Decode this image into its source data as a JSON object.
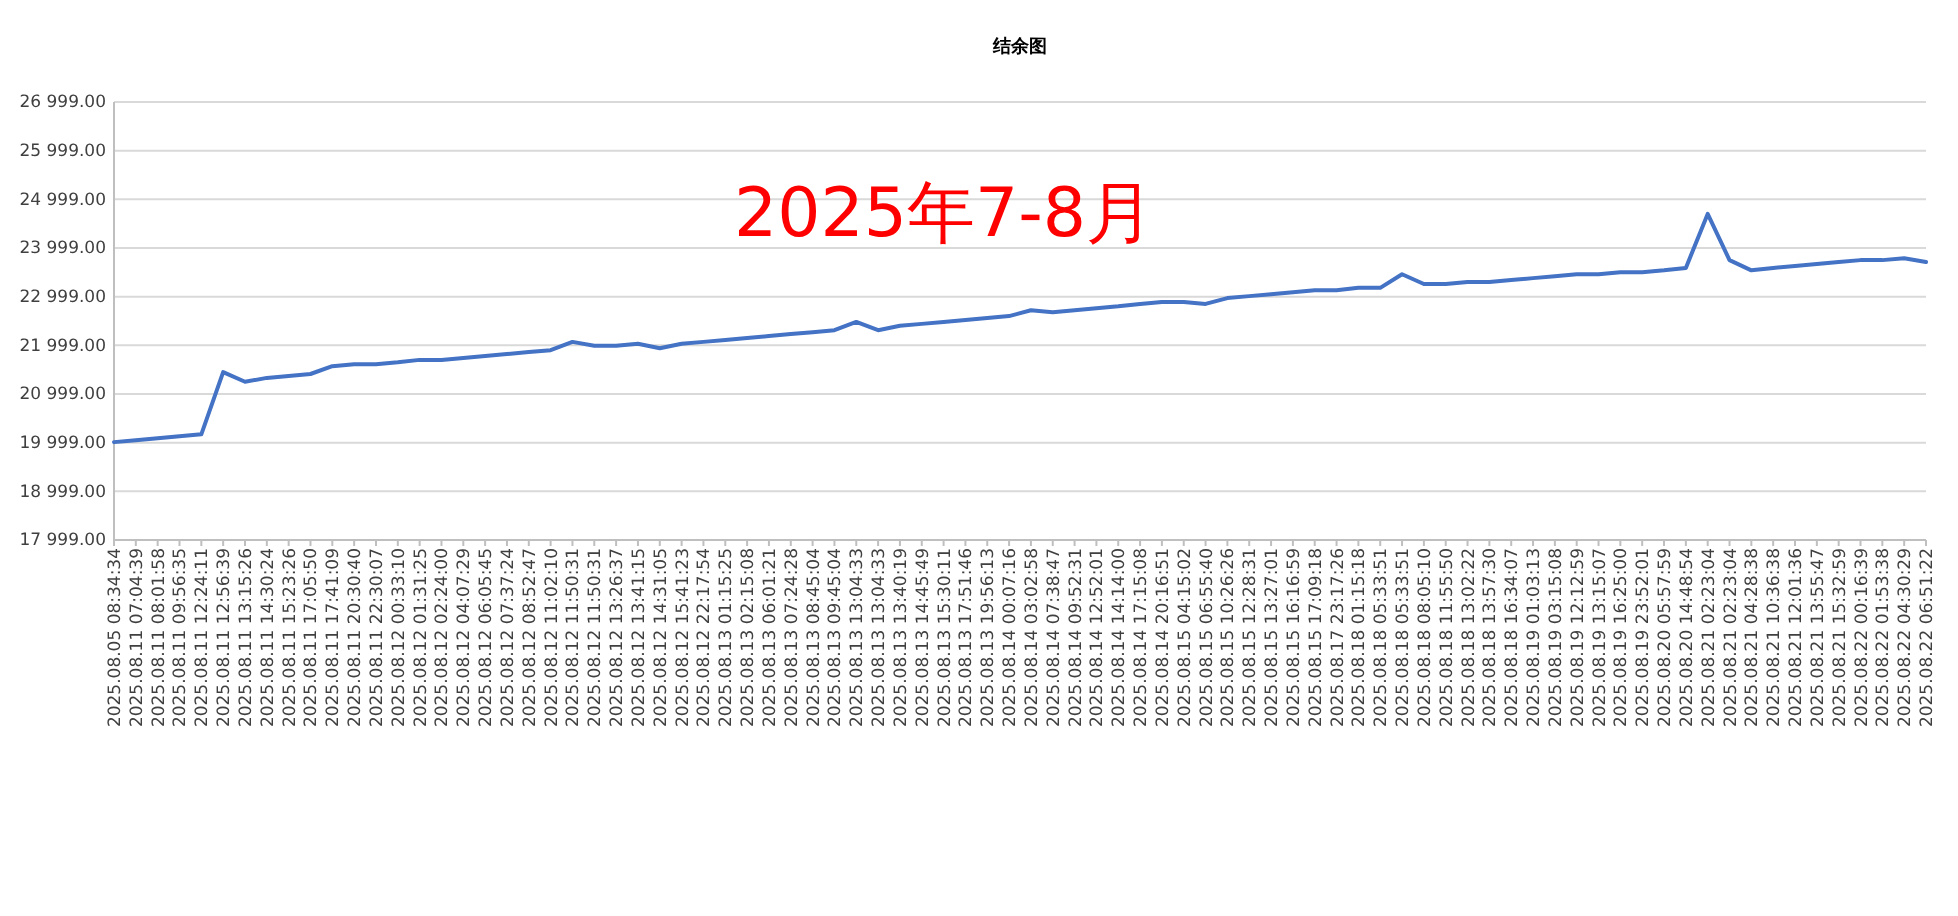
{
  "chart_data": {
    "type": "line",
    "title": "结余图",
    "categories": [
      "2025.08.05 08:34:34",
      "2025.08.11 07:04:39",
      "2025.08.11 08:01:58",
      "2025.08.11 09:56:35",
      "2025.08.11 12:24:11",
      "2025.08.11 12:56:39",
      "2025.08.11 13:15:26",
      "2025.08.11 14:30:24",
      "2025.08.11 15:23:26",
      "2025.08.11 17:05:50",
      "2025.08.11 17:41:09",
      "2025.08.11 20:30:40",
      "2025.08.11 22:30:07",
      "2025.08.12 00:33:10",
      "2025.08.12 01:31:25",
      "2025.08.12 02:24:00",
      "2025.08.12 04:07:29",
      "2025.08.12 06:05:45",
      "2025.08.12 07:37:24",
      "2025.08.12 08:52:47",
      "2025.08.12 11:02:10",
      "2025.08.12 11:50:31",
      "2025.08.12 11:50:31",
      "2025.08.12 13:26:37",
      "2025.08.12 13:41:15",
      "2025.08.12 14:31:05",
      "2025.08.12 15:41:23",
      "2025.08.12 22:17:54",
      "2025.08.13 01:15:25",
      "2025.08.13 02:15:08",
      "2025.08.13 06:01:21",
      "2025.08.13 07:24:28",
      "2025.08.13 08:45:04",
      "2025.08.13 09:45:04",
      "2025.08.13 13:04:33",
      "2025.08.13 13:04:33",
      "2025.08.13 13:40:19",
      "2025.08.13 14:45:49",
      "2025.08.13 15:30:11",
      "2025.08.13 17:51:46",
      "2025.08.13 19:56:13",
      "2025.08.14 00:07:16",
      "2025.08.14 03:02:58",
      "2025.08.14 07:38:47",
      "2025.08.14 09:52:31",
      "2025.08.14 12:52:01",
      "2025.08.14 14:14:00",
      "2025.08.14 17:15:08",
      "2025.08.14 20:16:51",
      "2025.08.15 04:15:02",
      "2025.08.15 06:55:40",
      "2025.08.15 10:26:26",
      "2025.08.15 12:28:31",
      "2025.08.15 13:27:01",
      "2025.08.15 16:16:59",
      "2025.08.15 17:09:18",
      "2025.08.17 23:17:26",
      "2025.08.18 01:15:18",
      "2025.08.18 05:33:51",
      "2025.08.18 05:33:51",
      "2025.08.18 08:05:10",
      "2025.08.18 11:55:50",
      "2025.08.18 13:02:22",
      "2025.08.18 13:57:30",
      "2025.08.18 16:34:07",
      "2025.08.19 01:03:13",
      "2025.08.19 03:15:08",
      "2025.08.19 12:12:59",
      "2025.08.19 13:15:07",
      "2025.08.19 16:25:00",
      "2025.08.19 23:52:01",
      "2025.08.20 05:57:59",
      "2025.08.20 14:48:54",
      "2025.08.21 02:23:04",
      "2025.08.21 02:23:04",
      "2025.08.21 04:28:38",
      "2025.08.21 10:36:38",
      "2025.08.21 12:01:36",
      "2025.08.21 13:55:47",
      "2025.08.21 15:32:59",
      "2025.08.22 00:16:39",
      "2025.08.22 01:53:38",
      "2025.08.22 04:30:29",
      "2025.08.22 06:51:22"
    ],
    "series": [
      {
        "color": "#4472c4",
        "values": [
          20010,
          20050,
          20090,
          20130,
          20170,
          21450,
          21250,
          21330,
          21370,
          21410,
          21570,
          21610,
          21610,
          21650,
          21700,
          21700,
          21740,
          21780,
          21820,
          21860,
          21900,
          22070,
          21990,
          21990,
          22030,
          21940,
          22030,
          22070,
          22110,
          22150,
          22190,
          22230,
          22270,
          22310,
          22480,
          22310,
          22400,
          22440,
          22480,
          22520,
          22560,
          22600,
          22720,
          22680,
          22720,
          22760,
          22800,
          22850,
          22890,
          22890,
          22850,
          22970,
          23010,
          23050,
          23090,
          23130,
          23130,
          23180,
          23180,
          23460,
          23260,
          23260,
          23300,
          23300,
          23340,
          23380,
          23420,
          23460,
          23460,
          23500,
          23500,
          23540,
          23590,
          24700,
          23750,
          23540,
          23590,
          23630,
          23670,
          23710,
          23750,
          23750,
          23790,
          23710
        ]
      }
    ],
    "ylim": [
      17999,
      26999
    ],
    "yticks": [
      {
        "value": 17999,
        "label": "17 999.00"
      },
      {
        "value": 18999,
        "label": "18 999.00"
      },
      {
        "value": 19999,
        "label": "19 999.00"
      },
      {
        "value": 20999,
        "label": "20 999.00"
      },
      {
        "value": 21999,
        "label": "21 999.00"
      },
      {
        "value": 22999,
        "label": "22 999.00"
      },
      {
        "value": 23999,
        "label": "23 999.00"
      },
      {
        "value": 24999,
        "label": "24 999.00"
      },
      {
        "value": 25999,
        "label": "25 999.00"
      },
      {
        "value": 26999,
        "label": "26 999.00"
      }
    ],
    "grid": "y",
    "marker": "none",
    "line_style": "solid",
    "annotations": [
      "2025年7-8月"
    ]
  }
}
